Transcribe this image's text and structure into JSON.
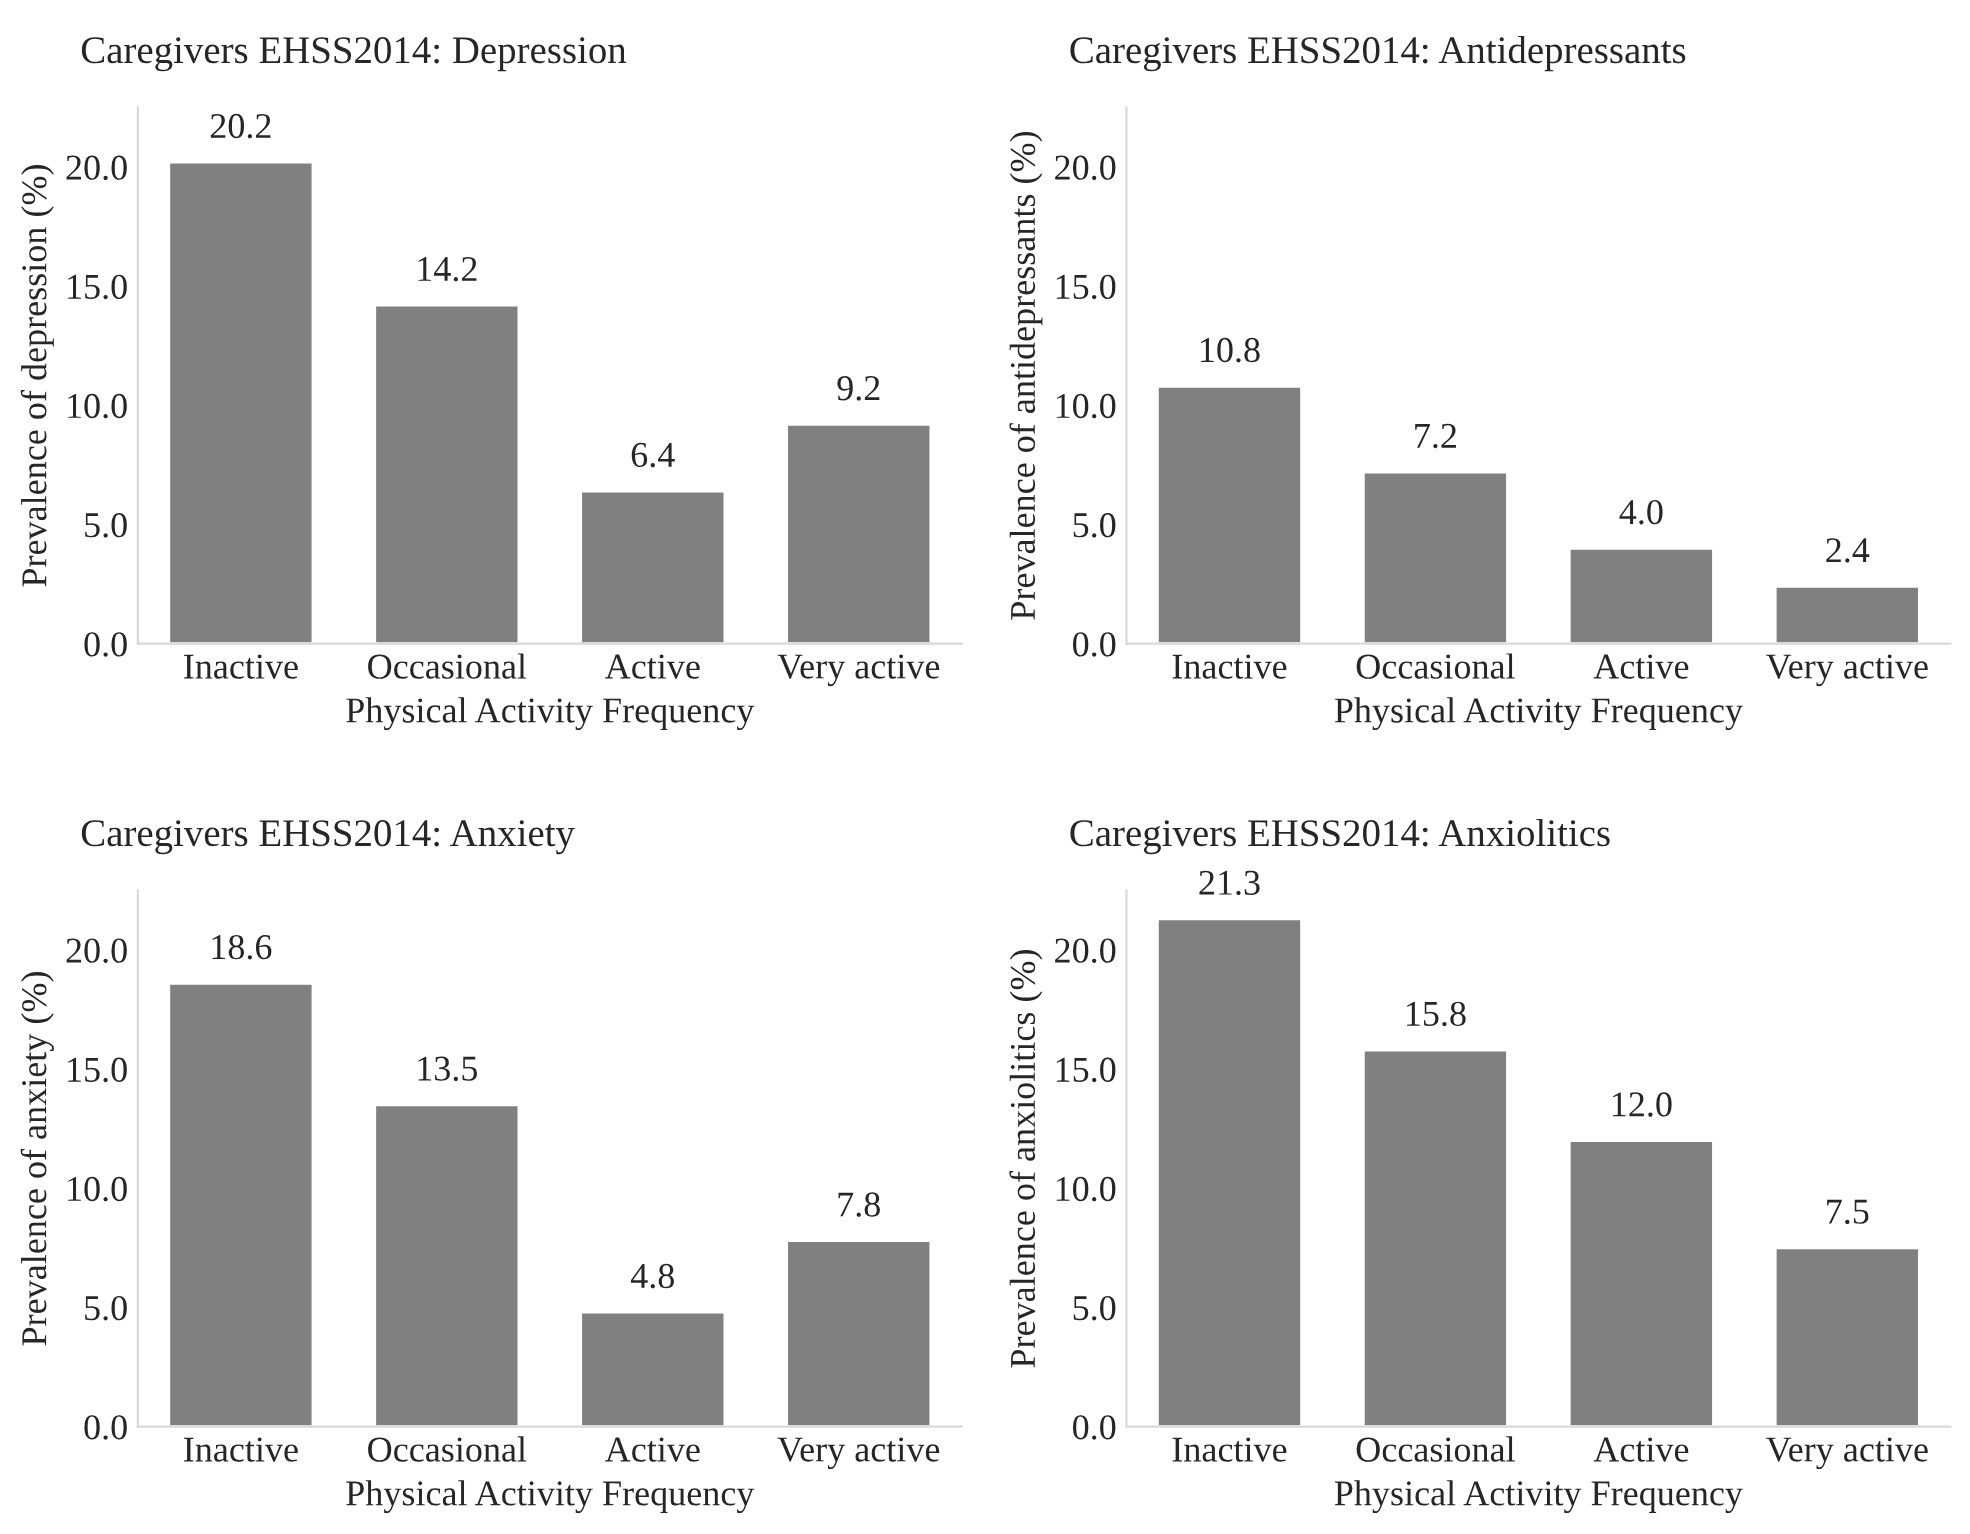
{
  "chart_data": [
    {
      "type": "bar",
      "title": "Caregivers EHSS2014: Depression",
      "xlabel": "Physical Activity Frequency",
      "ylabel": "Prevalence of depression (%)",
      "categories": [
        "Inactive",
        "Occasional",
        "Active",
        "Very active"
      ],
      "values": [
        20.2,
        14.2,
        6.4,
        9.2
      ],
      "color": "#808080",
      "ylim": [
        0,
        22.5
      ],
      "yticks": [
        {
          "value": 0,
          "label": "0.0"
        },
        {
          "value": 5,
          "label": "5.0"
        },
        {
          "value": 10,
          "label": "10.0"
        },
        {
          "value": 15,
          "label": "15.0"
        },
        {
          "value": 20,
          "label": "20.0"
        }
      ],
      "value_labels": [
        "20.2",
        "14.2",
        "6.4",
        "9.2"
      ],
      "grid": false,
      "legend": false
    },
    {
      "type": "bar",
      "title": "Caregivers EHSS2014: Antidepressants",
      "xlabel": "Physical Activity Frequency",
      "ylabel": "Prevalence of antidepressants (%)",
      "categories": [
        "Inactive",
        "Occasional",
        "Active",
        "Very active"
      ],
      "values": [
        10.8,
        7.2,
        4.0,
        2.4
      ],
      "color": "#808080",
      "ylim": [
        0,
        22.5
      ],
      "yticks": [
        {
          "value": 0,
          "label": "0.0"
        },
        {
          "value": 5,
          "label": "5.0"
        },
        {
          "value": 10,
          "label": "10.0"
        },
        {
          "value": 15,
          "label": "15.0"
        },
        {
          "value": 20,
          "label": "20.0"
        }
      ],
      "value_labels": [
        "10.8",
        "7.2",
        "4.0",
        "2.4"
      ],
      "grid": false,
      "legend": false
    },
    {
      "type": "bar",
      "title": "Caregivers EHSS2014: Anxiety",
      "xlabel": "Physical Activity Frequency",
      "ylabel": "Prevalence of anxiety (%)",
      "categories": [
        "Inactive",
        "Occasional",
        "Active",
        "Very active"
      ],
      "values": [
        18.6,
        13.5,
        4.8,
        7.8
      ],
      "color": "#808080",
      "ylim": [
        0,
        22.5
      ],
      "yticks": [
        {
          "value": 0,
          "label": "0.0"
        },
        {
          "value": 5,
          "label": "5.0"
        },
        {
          "value": 10,
          "label": "10.0"
        },
        {
          "value": 15,
          "label": "15.0"
        },
        {
          "value": 20,
          "label": "20.0"
        }
      ],
      "value_labels": [
        "18.6",
        "13.5",
        "4.8",
        "7.8"
      ],
      "grid": false,
      "legend": false
    },
    {
      "type": "bar",
      "title": "Caregivers EHSS2014: Anxiolitics",
      "xlabel": "Physical Activity Frequency",
      "ylabel": "Prevalence of anxiolitics (%)",
      "categories": [
        "Inactive",
        "Occasional",
        "Active",
        "Very active"
      ],
      "values": [
        21.3,
        15.8,
        12.0,
        7.5
      ],
      "color": "#808080",
      "ylim": [
        0,
        22.5
      ],
      "yticks": [
        {
          "value": 0,
          "label": "0.0"
        },
        {
          "value": 5,
          "label": "5.0"
        },
        {
          "value": 10,
          "label": "10.0"
        },
        {
          "value": 15,
          "label": "15.0"
        },
        {
          "value": 20,
          "label": "20.0"
        }
      ],
      "value_labels": [
        "21.3",
        "15.8",
        "12.0",
        "7.5"
      ],
      "grid": false,
      "legend": false
    }
  ]
}
